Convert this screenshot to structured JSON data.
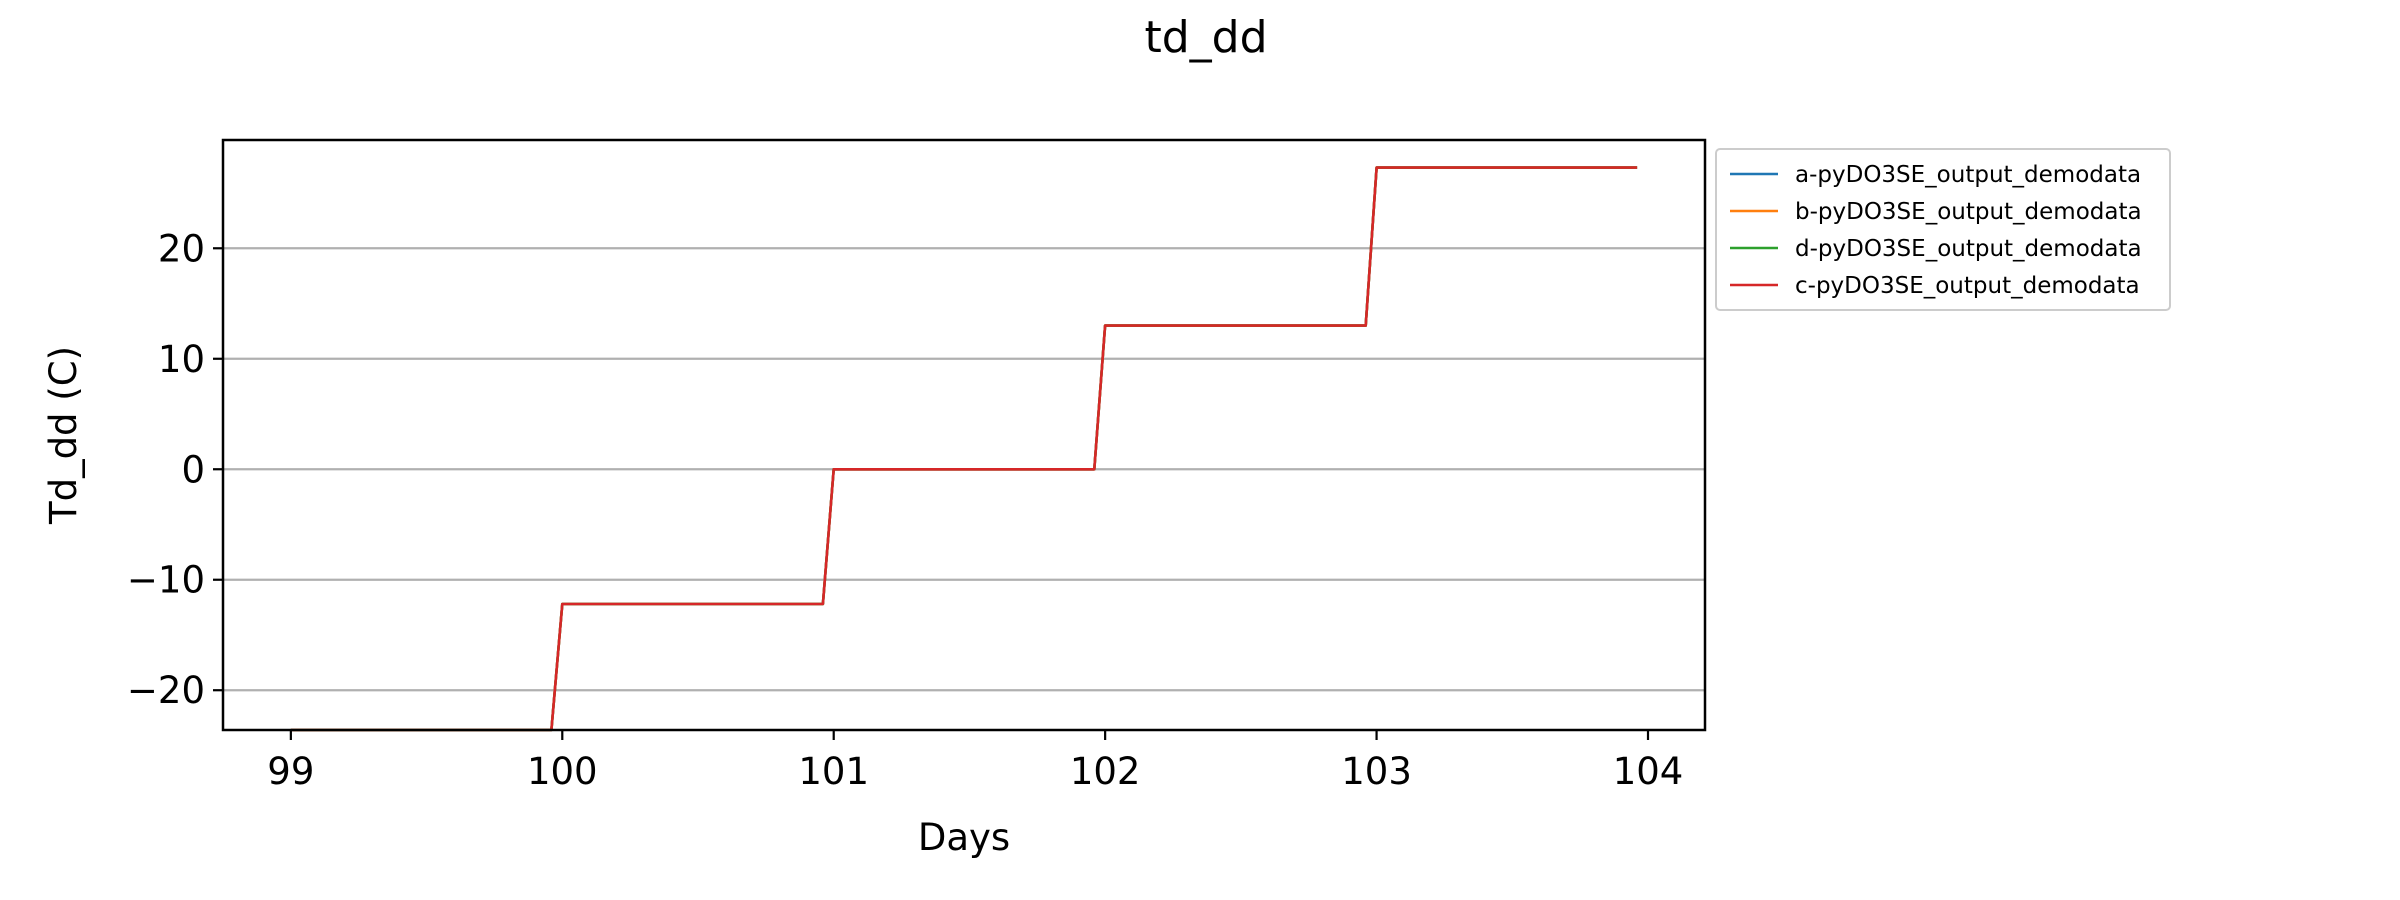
{
  "chart_data": {
    "type": "line",
    "title": "td_dd",
    "xlabel": "Days",
    "ylabel": "Td_dd (C)",
    "xlim": [
      98.75,
      104.21
    ],
    "ylim": [
      -23.6,
      29.8
    ],
    "xticks": [
      99,
      100,
      101,
      102,
      103,
      104
    ],
    "yticks": [
      -20,
      -10,
      0,
      10,
      20
    ],
    "xtick_labels": [
      "99",
      "100",
      "101",
      "102",
      "103",
      "104"
    ],
    "ytick_labels": [
      "−20",
      "−10",
      "0",
      "10",
      "20"
    ],
    "grid": "horizontal",
    "legend_position": "outside-top-right",
    "series": [
      {
        "name": "a-pyDO3SE_output_demodata",
        "color": "#1f77b4",
        "x": [
          99.0,
          99.96,
          100.0,
          100.96,
          101.0,
          101.96,
          102.0,
          102.96,
          103.0,
          103.96
        ],
        "y": [
          -23.6,
          -23.6,
          -12.2,
          -12.2,
          0.0,
          0.0,
          13.0,
          13.0,
          27.3,
          27.3
        ]
      },
      {
        "name": "b-pyDO3SE_output_demodata",
        "color": "#ff7f0e",
        "x": [
          99.0,
          99.96,
          100.0,
          100.96,
          101.0,
          101.96,
          102.0,
          102.96,
          103.0,
          103.96
        ],
        "y": [
          -23.6,
          -23.6,
          -12.2,
          -12.2,
          0.0,
          0.0,
          13.0,
          13.0,
          27.3,
          27.3
        ]
      },
      {
        "name": "d-pyDO3SE_output_demodata",
        "color": "#2ca02c",
        "x": [
          99.0,
          99.96,
          100.0,
          100.96,
          101.0,
          101.96,
          102.0,
          102.96,
          103.0,
          103.96
        ],
        "y": [
          -23.6,
          -23.6,
          -12.2,
          -12.2,
          0.0,
          0.0,
          13.0,
          13.0,
          27.3,
          27.3
        ]
      },
      {
        "name": "c-pyDO3SE_output_demodata",
        "color": "#d62728",
        "x": [
          99.0,
          99.96,
          100.0,
          100.96,
          101.0,
          101.96,
          102.0,
          102.96,
          103.0,
          103.96
        ],
        "y": [
          -23.6,
          -23.6,
          -12.2,
          -12.2,
          0.0,
          0.0,
          13.0,
          13.0,
          27.3,
          27.3
        ]
      }
    ]
  }
}
